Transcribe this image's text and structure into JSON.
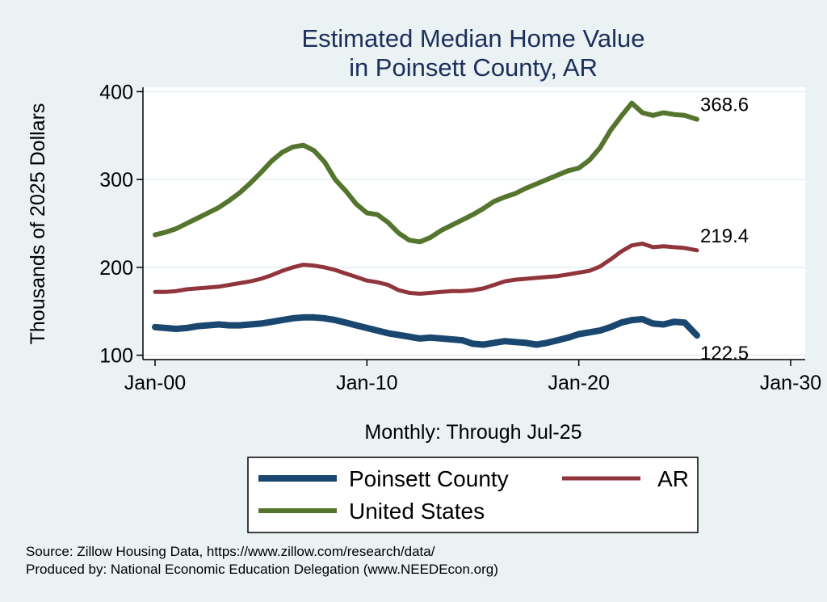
{
  "chart_data": {
    "type": "line",
    "title": [
      "Estimated Median Home Value",
      "in Poinsett County, AR"
    ],
    "xlabel": "Monthly: Through Jul-25",
    "ylabel": "Thousands of 2025 Dollars",
    "xlim": [
      2000,
      2030
    ],
    "ylim": [
      95,
      405
    ],
    "x_ticks": [
      {
        "value": 2000,
        "label": "Jan-00"
      },
      {
        "value": 2010,
        "label": "Jan-10"
      },
      {
        "value": 2020,
        "label": "Jan-20"
      },
      {
        "value": 2030,
        "label": "Jan-30"
      }
    ],
    "y_ticks": [
      {
        "value": 100,
        "label": "100"
      },
      {
        "value": 200,
        "label": "200"
      },
      {
        "value": 300,
        "label": "300"
      },
      {
        "value": 400,
        "label": "400"
      }
    ],
    "grid": true,
    "legend_position": "bottom",
    "series": [
      {
        "name": "Poinsett County",
        "color": "#1a476f",
        "end_label": "122.5",
        "points": [
          [
            2000.0,
            132
          ],
          [
            2000.5,
            131
          ],
          [
            2001.0,
            130
          ],
          [
            2001.5,
            131
          ],
          [
            2002.0,
            133
          ],
          [
            2002.5,
            134
          ],
          [
            2003.0,
            135
          ],
          [
            2003.5,
            134
          ],
          [
            2004.0,
            134
          ],
          [
            2004.5,
            135
          ],
          [
            2005.0,
            136
          ],
          [
            2005.5,
            138
          ],
          [
            2006.0,
            140
          ],
          [
            2006.5,
            142
          ],
          [
            2007.0,
            143
          ],
          [
            2007.5,
            143
          ],
          [
            2008.0,
            142
          ],
          [
            2008.5,
            140
          ],
          [
            2009.0,
            137
          ],
          [
            2009.5,
            134
          ],
          [
            2010.0,
            131
          ],
          [
            2010.5,
            128
          ],
          [
            2011.0,
            125
          ],
          [
            2011.5,
            123
          ],
          [
            2012.0,
            121
          ],
          [
            2012.5,
            119
          ],
          [
            2013.0,
            120
          ],
          [
            2013.5,
            119
          ],
          [
            2014.0,
            118
          ],
          [
            2014.5,
            117
          ],
          [
            2015.0,
            113
          ],
          [
            2015.5,
            112
          ],
          [
            2016.0,
            114
          ],
          [
            2016.5,
            116
          ],
          [
            2017.0,
            115
          ],
          [
            2017.5,
            114
          ],
          [
            2018.0,
            112
          ],
          [
            2018.5,
            114
          ],
          [
            2019.0,
            117
          ],
          [
            2019.5,
            120
          ],
          [
            2020.0,
            124
          ],
          [
            2020.5,
            126
          ],
          [
            2021.0,
            128
          ],
          [
            2021.5,
            132
          ],
          [
            2022.0,
            137
          ],
          [
            2022.5,
            140
          ],
          [
            2023.0,
            141
          ],
          [
            2023.5,
            136
          ],
          [
            2024.0,
            135
          ],
          [
            2024.5,
            138
          ],
          [
            2025.0,
            137
          ],
          [
            2025.58,
            122.5
          ]
        ]
      },
      {
        "name": "AR",
        "color": "#90353b",
        "end_label": "219.4",
        "points": [
          [
            2000.0,
            172
          ],
          [
            2000.5,
            172
          ],
          [
            2001.0,
            173
          ],
          [
            2001.5,
            175
          ],
          [
            2002.0,
            176
          ],
          [
            2002.5,
            177
          ],
          [
            2003.0,
            178
          ],
          [
            2003.5,
            180
          ],
          [
            2004.0,
            182
          ],
          [
            2004.5,
            184
          ],
          [
            2005.0,
            187
          ],
          [
            2005.5,
            191
          ],
          [
            2006.0,
            196
          ],
          [
            2006.5,
            200
          ],
          [
            2007.0,
            203
          ],
          [
            2007.5,
            202
          ],
          [
            2008.0,
            200
          ],
          [
            2008.5,
            197
          ],
          [
            2009.0,
            193
          ],
          [
            2009.5,
            189
          ],
          [
            2010.0,
            185
          ],
          [
            2010.5,
            183
          ],
          [
            2011.0,
            180
          ],
          [
            2011.5,
            174
          ],
          [
            2012.0,
            171
          ],
          [
            2012.5,
            170
          ],
          [
            2013.0,
            171
          ],
          [
            2013.5,
            172
          ],
          [
            2014.0,
            173
          ],
          [
            2014.5,
            173
          ],
          [
            2015.0,
            174
          ],
          [
            2015.5,
            176
          ],
          [
            2016.0,
            180
          ],
          [
            2016.5,
            184
          ],
          [
            2017.0,
            186
          ],
          [
            2017.5,
            187
          ],
          [
            2018.0,
            188
          ],
          [
            2018.5,
            189
          ],
          [
            2019.0,
            190
          ],
          [
            2019.5,
            192
          ],
          [
            2020.0,
            194
          ],
          [
            2020.5,
            196
          ],
          [
            2021.0,
            201
          ],
          [
            2021.5,
            209
          ],
          [
            2022.0,
            218
          ],
          [
            2022.5,
            225
          ],
          [
            2023.0,
            227
          ],
          [
            2023.5,
            223
          ],
          [
            2024.0,
            224
          ],
          [
            2024.5,
            223
          ],
          [
            2025.0,
            222
          ],
          [
            2025.58,
            219.4
          ]
        ]
      },
      {
        "name": "United States",
        "color": "#55752f",
        "end_label": "368.6",
        "points": [
          [
            2000.0,
            237
          ],
          [
            2000.5,
            240
          ],
          [
            2001.0,
            244
          ],
          [
            2001.5,
            250
          ],
          [
            2002.0,
            256
          ],
          [
            2002.5,
            262
          ],
          [
            2003.0,
            268
          ],
          [
            2003.5,
            276
          ],
          [
            2004.0,
            285
          ],
          [
            2004.5,
            296
          ],
          [
            2005.0,
            308
          ],
          [
            2005.5,
            321
          ],
          [
            2006.0,
            331
          ],
          [
            2006.5,
            337
          ],
          [
            2007.0,
            339
          ],
          [
            2007.5,
            333
          ],
          [
            2008.0,
            320
          ],
          [
            2008.5,
            300
          ],
          [
            2009.0,
            287
          ],
          [
            2009.5,
            272
          ],
          [
            2010.0,
            262
          ],
          [
            2010.5,
            260
          ],
          [
            2011.0,
            251
          ],
          [
            2011.5,
            239
          ],
          [
            2012.0,
            231
          ],
          [
            2012.5,
            229
          ],
          [
            2013.0,
            234
          ],
          [
            2013.5,
            242
          ],
          [
            2014.0,
            248
          ],
          [
            2014.5,
            254
          ],
          [
            2015.0,
            260
          ],
          [
            2015.5,
            267
          ],
          [
            2016.0,
            275
          ],
          [
            2016.5,
            280
          ],
          [
            2017.0,
            284
          ],
          [
            2017.5,
            290
          ],
          [
            2018.0,
            295
          ],
          [
            2018.5,
            300
          ],
          [
            2019.0,
            305
          ],
          [
            2019.5,
            310
          ],
          [
            2020.0,
            313
          ],
          [
            2020.5,
            322
          ],
          [
            2021.0,
            336
          ],
          [
            2021.5,
            356
          ],
          [
            2022.0,
            372
          ],
          [
            2022.5,
            387
          ],
          [
            2023.0,
            376
          ],
          [
            2023.5,
            373
          ],
          [
            2024.0,
            376
          ],
          [
            2024.5,
            374
          ],
          [
            2025.0,
            373
          ],
          [
            2025.58,
            368.6
          ]
        ]
      }
    ]
  },
  "source": {
    "line1": "Source: Zillow Housing Data, https://www.zillow.com/research/data/",
    "line2": "Produced by: National Economic Education Delegation (www.NEEDEcon.org)"
  }
}
